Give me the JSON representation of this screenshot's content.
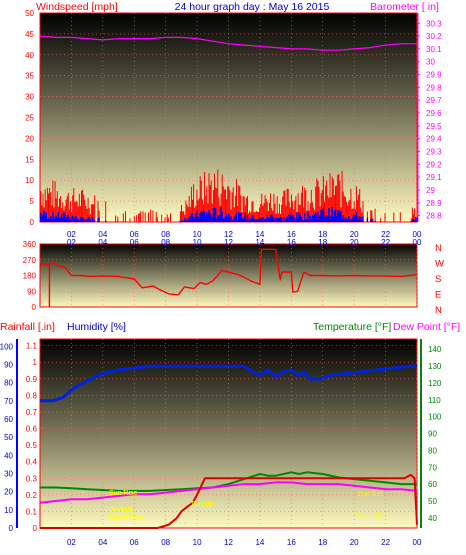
{
  "header": {
    "wind_label": "Windspeed [mph]",
    "title": "24 hour graph day : May 16 2015",
    "baro_label": "Barometer [ in]"
  },
  "panel3": {
    "rain_label": "Rainfall [.in]",
    "hum_label": "Humidity [%]",
    "temp_label": "Temperature [°F]",
    "dew_label": "Dew Point [°F]"
  },
  "colors": {
    "frame": "#ff0000",
    "wind": "#ff0000",
    "gust": "#0000ff",
    "baro": "#ff00ff",
    "dir": "#ff0000",
    "rain": "#dd0000",
    "hum": "#0022dd",
    "temp": "#008800",
    "dew": "#ff00ff",
    "text_red": "#ff0000",
    "text_blue": "#0000cc",
    "text_green": "#008800",
    "text_mag": "#ff00ff",
    "annot": "#ffff00"
  },
  "time_ticks": [
    "02",
    "04",
    "06",
    "08",
    "10",
    "12",
    "14",
    "16",
    "18",
    "20",
    "22",
    "00"
  ],
  "chart_data": [
    {
      "type": "line",
      "title": "24 hour graph day : May 16 2015",
      "xlabel": "",
      "xlim": [
        0,
        24
      ],
      "ylabel": "Windspeed [mph]",
      "ylim": [
        0,
        50
      ],
      "yticks": [
        "0",
        "5",
        "10",
        "15",
        "20",
        "25",
        "30",
        "35",
        "40",
        "45",
        "50"
      ],
      "y2label": "Barometer [ in]",
      "y2lim": [
        28.75,
        30.38
      ],
      "y2ticks": [
        "28.8",
        "28.9",
        "29",
        "29.1",
        "29.2",
        "29.3",
        "29.4",
        "29.5",
        "29.6",
        "29.7",
        "29.8",
        "29.9",
        "30",
        "30.1",
        "30.2",
        "30.3"
      ],
      "series": [
        {
          "name": "Windspeed",
          "axis": "left",
          "x": [
            0.0,
            0.6,
            1.2,
            1.9,
            2.6,
            3.3,
            4.0,
            5.2,
            6.0,
            7.1,
            8.0,
            8.6,
            9.2,
            9.8,
            10.4,
            11.0,
            11.6,
            12.2,
            13.0,
            14.0,
            14.8,
            15.4,
            16.0,
            16.6,
            17.2,
            17.8,
            18.4,
            19.0,
            19.6,
            20.2,
            21.0,
            22.0,
            23.0,
            24.0
          ],
          "y": [
            10,
            9,
            8,
            7,
            7,
            6,
            5,
            3,
            2,
            3,
            2,
            3,
            4,
            9,
            10,
            12,
            11,
            10,
            7,
            6,
            7,
            6,
            8,
            8,
            9,
            9,
            10,
            11,
            9,
            8,
            3,
            2,
            3,
            3
          ]
        },
        {
          "name": "Gust",
          "axis": "left",
          "x": [
            0.0,
            0.6,
            1.2,
            1.9,
            2.6,
            3.3,
            4.0,
            5.2,
            6.0,
            7.1,
            8.0,
            8.6,
            9.2,
            9.8,
            10.4,
            11.0,
            11.6,
            12.2,
            13.0,
            14.0,
            14.8,
            15.4,
            16.0,
            16.6,
            17.2,
            17.8,
            18.4,
            19.0,
            19.6,
            20.2,
            21.0,
            22.0,
            23.0,
            24.0
          ],
          "y": [
            3,
            2,
            2,
            2,
            1,
            1,
            1,
            0,
            0,
            0,
            0,
            0,
            1,
            2,
            3,
            3,
            3,
            2,
            2,
            1,
            2,
            1,
            2,
            2,
            2,
            3,
            3,
            3,
            2,
            2,
            1,
            0,
            0,
            1
          ]
        },
        {
          "name": "Barometer",
          "axis": "right",
          "x": [
            0,
            1,
            2,
            3,
            4,
            5,
            6,
            7,
            8,
            9,
            10,
            11,
            12,
            13,
            14,
            15,
            16,
            17,
            18,
            19,
            20,
            21,
            22,
            23,
            24
          ],
          "y": [
            30.2,
            30.19,
            30.19,
            30.18,
            30.17,
            30.18,
            30.18,
            30.18,
            30.19,
            30.19,
            30.18,
            30.16,
            30.14,
            30.13,
            30.12,
            30.11,
            30.1,
            30.1,
            30.09,
            30.09,
            30.1,
            30.11,
            30.13,
            30.14,
            30.14
          ]
        }
      ]
    },
    {
      "type": "line",
      "title": "",
      "ylabel": "",
      "xlim": [
        0,
        24
      ],
      "ylim": [
        0,
        360
      ],
      "yticks": [
        "0",
        "90",
        "180",
        "270",
        "360"
      ],
      "y2ticks": [
        "N",
        "W",
        "S",
        "E",
        "N"
      ],
      "series": [
        {
          "name": "Wind direction",
          "x": [
            0.0,
            0.2,
            0.5,
            0.8,
            1.2,
            1.6,
            2.0,
            2.6,
            3.2,
            4.0,
            5.0,
            6.0,
            6.5,
            7.2,
            7.6,
            8.2,
            8.8,
            9.2,
            9.8,
            10.2,
            10.6,
            11.0,
            11.6,
            12.2,
            12.6,
            13.0,
            13.4,
            14.0,
            14.1,
            15.0,
            15.3,
            15.4,
            16.0,
            16.1,
            16.4,
            16.8,
            17.2,
            18.0,
            19.0,
            20.0,
            21.0,
            22.0,
            23.0,
            24.0
          ],
          "y": [
            230,
            250,
            240,
            255,
            235,
            225,
            180,
            180,
            175,
            178,
            175,
            160,
            110,
            120,
            100,
            75,
            70,
            115,
            105,
            140,
            130,
            150,
            210,
            195,
            185,
            170,
            150,
            130,
            330,
            330,
            155,
            200,
            200,
            85,
            90,
            200,
            180,
            180,
            178,
            180,
            178,
            177,
            175,
            185
          ]
        }
      ]
    },
    {
      "type": "line",
      "title": "",
      "xlim": [
        0,
        24
      ],
      "ylabel": "Rainfall [.in]",
      "ylim": [
        0,
        1.14
      ],
      "yticks": [
        "0",
        "0.1",
        "0.2",
        "0.3",
        "0.4",
        "0.5",
        "0.6",
        "0.7",
        "0.8",
        "0.9",
        "1",
        "1.1"
      ],
      "y_hum_label": "Humidity [%]",
      "y_hum_lim": [
        0,
        104
      ],
      "y_hum_ticks": [
        "0",
        "10",
        "20",
        "30",
        "40",
        "50",
        "60",
        "70",
        "80",
        "90",
        "100"
      ],
      "y2label": "Temperature [°F]",
      "y2lim": [
        34,
        146
      ],
      "y2ticks": [
        "40",
        "50",
        "60",
        "70",
        "80",
        "90",
        "100",
        "110",
        "120",
        "130",
        "140"
      ],
      "annotations": [
        "Sun Rise",
        "Sun Set",
        "Twilight",
        "Moon Rise",
        "Moon Set",
        "Twilight"
      ],
      "series": [
        {
          "name": "Rainfall",
          "axis": "rain",
          "x": [
            0,
            5.5,
            7.5,
            8.2,
            8.7,
            9.0,
            9.4,
            9.7,
            10.0,
            10.5,
            11.0,
            14.0,
            16.0,
            18.0,
            20.0,
            22.0,
            23.2,
            23.6,
            23.85,
            24.0
          ],
          "y": [
            0,
            0,
            0,
            0.02,
            0.06,
            0.1,
            0.13,
            0.15,
            0.2,
            0.3,
            0.3,
            0.3,
            0.3,
            0.3,
            0.3,
            0.3,
            0.3,
            0.32,
            0.3,
            0.02
          ]
        },
        {
          "name": "Humidity",
          "axis": "hum",
          "x": [
            0,
            0.8,
            1.5,
            2.0,
            3.0,
            4.0,
            5.0,
            6.0,
            7.0,
            8.0,
            9.0,
            10.0,
            11.0,
            12.0,
            13.0,
            13.5,
            14.0,
            14.5,
            15.0,
            15.5,
            16.0,
            16.4,
            16.8,
            17.2,
            17.8,
            18.5,
            19.5,
            20.5,
            21.5,
            22.5,
            23.5,
            24.0
          ],
          "y": [
            70,
            70,
            72,
            76,
            81,
            85,
            87,
            88,
            89,
            89,
            89,
            89,
            89,
            89,
            89,
            86,
            84,
            87,
            83,
            86,
            87,
            84,
            86,
            82,
            82,
            84,
            85,
            86,
            87,
            88,
            89,
            89
          ]
        },
        {
          "name": "Temperature",
          "axis": "temp",
          "x": [
            0,
            1,
            2,
            3,
            4,
            5,
            6,
            7,
            8,
            9,
            10,
            11,
            12,
            13,
            14,
            14.5,
            15,
            15.5,
            16,
            16.5,
            17,
            18,
            19,
            20,
            21,
            22,
            23,
            24
          ],
          "y": [
            58,
            58,
            57.5,
            57,
            56.5,
            56,
            56,
            56,
            56.5,
            57,
            57.5,
            58,
            60,
            63,
            66,
            65,
            65,
            66,
            67,
            66,
            67,
            66,
            64,
            63,
            62,
            61,
            60,
            60
          ]
        },
        {
          "name": "Dew Point",
          "axis": "temp",
          "x": [
            0,
            1,
            2,
            3,
            4,
            5,
            6,
            7,
            8,
            9,
            10,
            11,
            12,
            13,
            14,
            15,
            16,
            17,
            18,
            19,
            20,
            21,
            22,
            23,
            24
          ],
          "y": [
            49,
            50,
            51,
            51,
            52,
            53,
            54,
            54,
            55,
            56,
            57,
            58,
            59,
            60,
            60,
            61,
            61,
            60,
            60,
            60,
            59,
            58,
            57,
            57,
            56
          ]
        }
      ]
    }
  ]
}
